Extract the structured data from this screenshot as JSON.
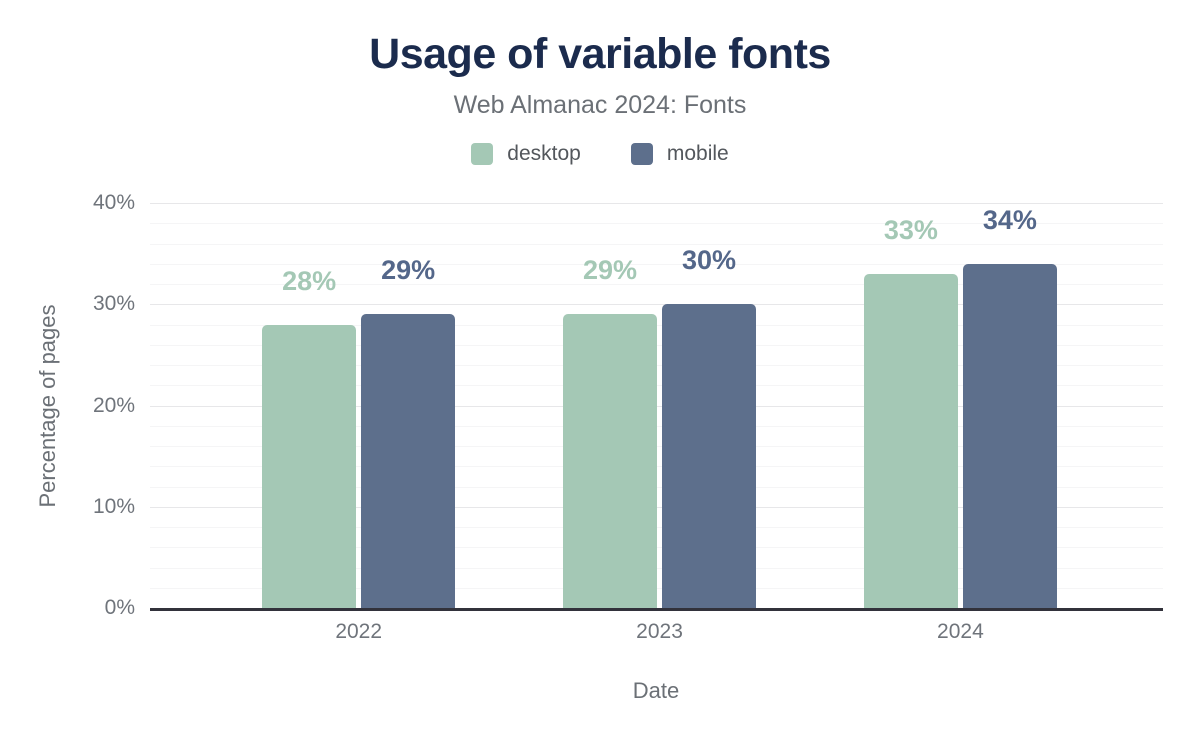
{
  "page": {
    "title": "Usage of variable fonts",
    "subtitle": "Web Almanac 2024: Fonts"
  },
  "legend": {
    "items": [
      {
        "label": "desktop",
        "color": "#a4c8b5"
      },
      {
        "label": "mobile",
        "color": "#5d6f8c"
      }
    ]
  },
  "chart_data": {
    "type": "bar",
    "title": "Usage of variable fonts",
    "subtitle": "Web Almanac 2024: Fonts",
    "categories": [
      "2022",
      "2023",
      "2024"
    ],
    "series": [
      {
        "name": "desktop",
        "values": [
          28,
          29,
          33
        ],
        "data_labels": [
          "28%",
          "29%",
          "33%"
        ],
        "color": "#a4c8b5",
        "label_color": "#a4c8b5"
      },
      {
        "name": "mobile",
        "values": [
          29,
          30,
          34
        ],
        "data_labels": [
          "29%",
          "30%",
          "34%"
        ],
        "color": "#5d6f8c",
        "label_color": "#54678a"
      }
    ],
    "xlabel": "Date",
    "ylabel": "Percentage of pages",
    "ylim": [
      0,
      40
    ],
    "yticks": [
      0,
      10,
      20,
      30,
      40
    ],
    "ytick_labels": [
      "0%",
      "10%",
      "20%",
      "30%",
      "40%"
    ],
    "minor_grid_step_pct": 2,
    "grid": true,
    "legend_position": "top",
    "bar_orientation": "vertical"
  },
  "colors": {
    "title": "#1b2b4d",
    "subtitle": "#6b7076",
    "legend_text": "#53575c",
    "axis_text": "#6f747b",
    "axis_title_text": "#6b7076",
    "axis_line": "#32323b",
    "gridline_major": "#e7e7e9",
    "gridline_minor": "#f5f5f6",
    "background": "#ffffff"
  }
}
